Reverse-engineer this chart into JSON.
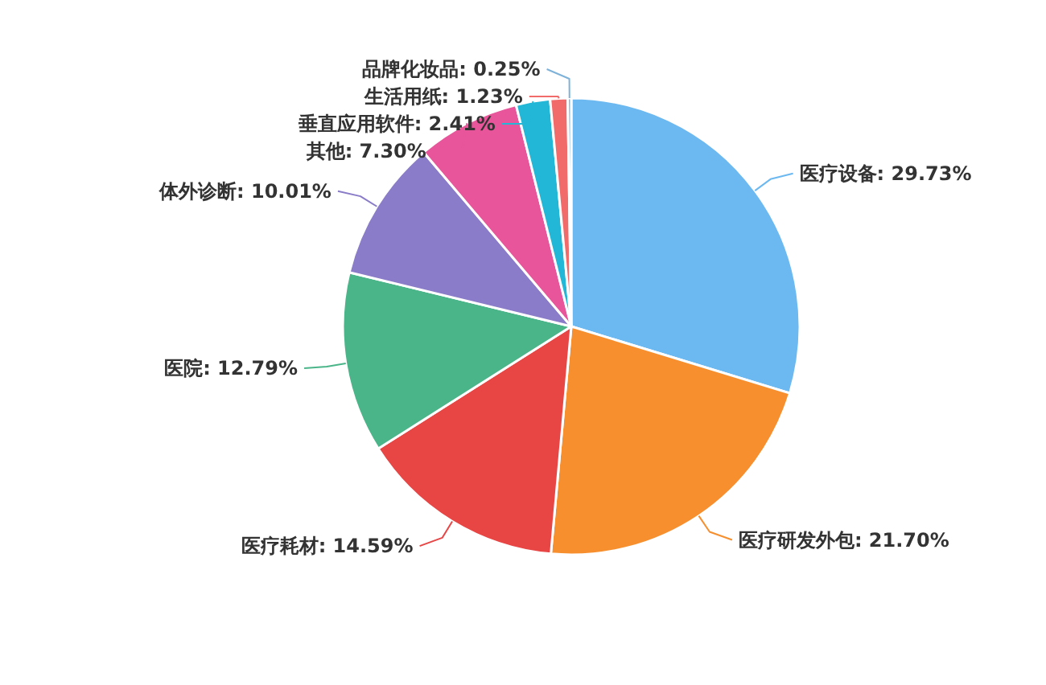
{
  "chart_data": {
    "type": "pie",
    "categories": [
      "医疗设备",
      "医疗研发外包",
      "医疗耗材",
      "医院",
      "体外诊断",
      "其他",
      "垂直应用软件",
      "生活用纸",
      "品牌化妆品"
    ],
    "values": [
      29.73,
      21.7,
      14.59,
      12.79,
      10.01,
      7.3,
      2.41,
      1.23,
      0.25
    ],
    "value_labels": [
      "29.73%",
      "21.70%",
      "14.59%",
      "12.79%",
      "10.01%",
      "7.30%",
      "2.41%",
      "1.23%",
      "0.25%"
    ],
    "colors": [
      "#6cb8f0",
      "#f78f2e",
      "#e84545",
      "#4bb58a",
      "#8a7cc8",
      "#e8559a",
      "#22b7d6",
      "#f26b6b",
      "#7fb2d8"
    ]
  }
}
